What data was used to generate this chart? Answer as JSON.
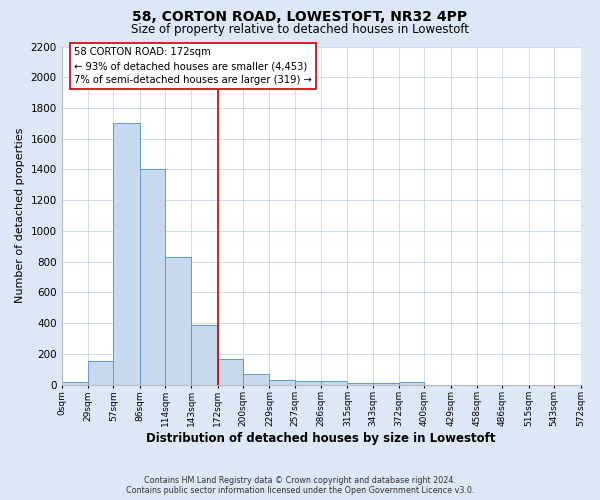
{
  "title": "58, CORTON ROAD, LOWESTOFT, NR32 4PP",
  "subtitle": "Size of property relative to detached houses in Lowestoft",
  "xlabel": "Distribution of detached houses by size in Lowestoft",
  "ylabel": "Number of detached properties",
  "bar_edges": [
    0,
    29,
    57,
    86,
    114,
    143,
    172,
    200,
    229,
    257,
    286,
    315,
    343,
    372,
    400,
    429,
    458,
    486,
    515,
    543,
    572
  ],
  "bar_heights": [
    15,
    155,
    1700,
    1400,
    830,
    390,
    165,
    70,
    30,
    20,
    25,
    10,
    10,
    15,
    0,
    0,
    0,
    0,
    0,
    0
  ],
  "bar_color": "#c8d9ee",
  "bar_edge_color": "#5b9bd5",
  "vline_x": 172,
  "vline_color": "#cc0000",
  "annotation_title": "58 CORTON ROAD: 172sqm",
  "annotation_line1": "← 93% of detached houses are smaller (4,453)",
  "annotation_line2": "7% of semi-detached houses are larger (319) →",
  "annotation_box_color": "#ffffff",
  "annotation_box_edge": "#cc0000",
  "tick_labels": [
    "0sqm",
    "29sqm",
    "57sqm",
    "86sqm",
    "114sqm",
    "143sqm",
    "172sqm",
    "200sqm",
    "229sqm",
    "257sqm",
    "286sqm",
    "315sqm",
    "343sqm",
    "372sqm",
    "400sqm",
    "429sqm",
    "458sqm",
    "486sqm",
    "515sqm",
    "543sqm",
    "572sqm"
  ],
  "ylim": [
    0,
    2200
  ],
  "yticks": [
    0,
    200,
    400,
    600,
    800,
    1000,
    1200,
    1400,
    1600,
    1800,
    2000,
    2200
  ],
  "footer_line1": "Contains HM Land Registry data © Crown copyright and database right 2024.",
  "footer_line2": "Contains public sector information licensed under the Open Government Licence v3.0.",
  "bg_color": "#dce8f5",
  "plot_bg_color": "#ffffff"
}
